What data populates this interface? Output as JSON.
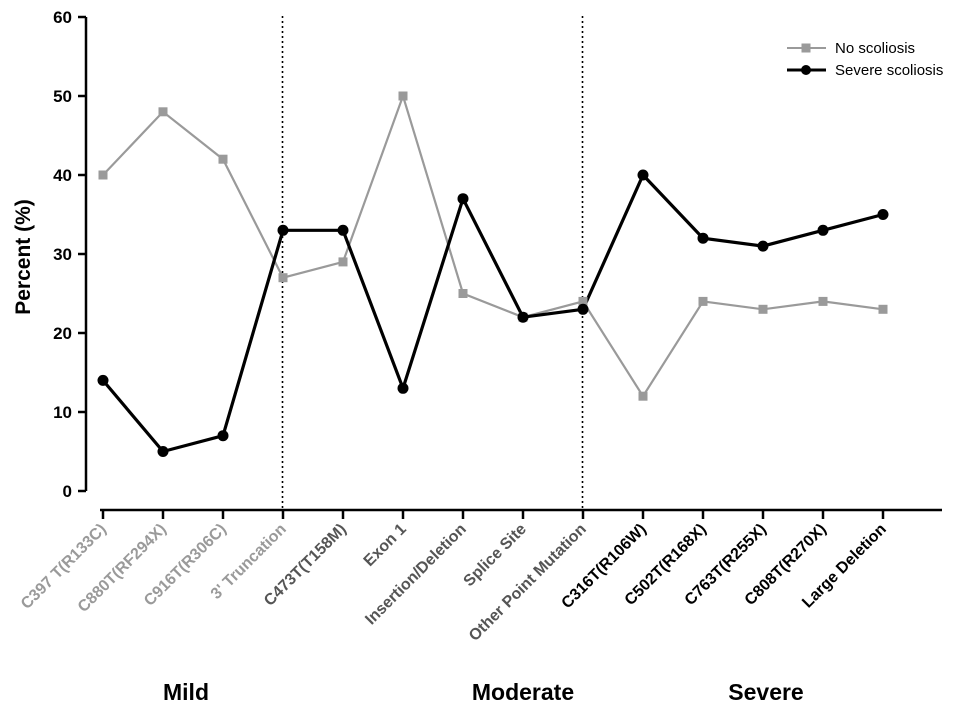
{
  "chart_data": {
    "type": "line",
    "ylabel": "Percent (%)",
    "ylim": [
      0,
      60
    ],
    "yticks": [
      "0",
      "10",
      "20",
      "30",
      "40",
      "50",
      "60"
    ],
    "categories": [
      "C397 T(R133C)",
      "C880T(RF294X)",
      "C916T(R306C)",
      "3' Truncation",
      "C473T(T158M)",
      "Exon 1",
      "Insertion/Deletion",
      "Splice Site",
      "Other Point Mutation",
      "C316T(R106W)",
      "C502T(R168X)",
      "C763T(R255X)",
      "C808T(R270X)",
      "Large Deletion"
    ],
    "category_colors": [
      "#9a9a9a",
      "#9a9a9a",
      "#9a9a9a",
      "#9a9a9a",
      "#555555",
      "#555555",
      "#555555",
      "#555555",
      "#555555",
      "#000000",
      "#000000",
      "#000000",
      "#000000",
      "#000000"
    ],
    "series": [
      {
        "name": "No scoliosis",
        "color": "#9a9a9a",
        "marker": "square",
        "values": [
          40,
          48,
          42,
          27,
          29,
          50,
          25,
          22,
          24,
          12,
          24,
          23,
          24,
          23
        ]
      },
      {
        "name": "Severe scoliosis",
        "color": "#000000",
        "marker": "circle",
        "values": [
          14,
          5,
          7,
          33,
          33,
          13,
          37,
          22,
          23,
          40,
          32,
          31,
          33,
          35
        ]
      }
    ],
    "dividers_after_category": [
      3,
      8
    ],
    "groups": [
      {
        "label": "Mild"
      },
      {
        "label": "Moderate"
      },
      {
        "label": "Severe"
      }
    ],
    "legend_position": "top-right",
    "grid": false
  }
}
